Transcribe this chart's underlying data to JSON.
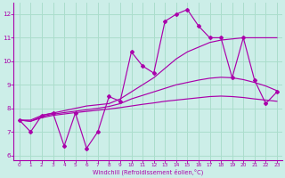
{
  "xlabel": "Windchill (Refroidissement éolien,°C)",
  "background_color": "#cceee8",
  "grid_color": "#aaddcc",
  "line_color": "#aa00aa",
  "x": [
    0,
    1,
    2,
    3,
    4,
    5,
    6,
    7,
    8,
    9,
    10,
    11,
    12,
    13,
    14,
    15,
    16,
    17,
    18,
    19,
    20,
    21,
    22,
    23
  ],
  "y_main": [
    7.5,
    7.0,
    7.7,
    7.8,
    6.4,
    7.8,
    6.3,
    7.0,
    8.5,
    8.3,
    10.4,
    9.8,
    9.5,
    11.7,
    12.0,
    12.2,
    11.5,
    11.0,
    11.0,
    9.3,
    11.0,
    9.2,
    8.2,
    8.7
  ],
  "y_smooth_high": [
    7.5,
    7.5,
    7.7,
    7.8,
    7.9,
    8.0,
    8.1,
    8.15,
    8.2,
    8.4,
    8.7,
    9.0,
    9.3,
    9.7,
    10.1,
    10.4,
    10.6,
    10.8,
    10.9,
    10.95,
    11.0,
    11.0,
    11.0,
    11.0
  ],
  "y_smooth_mid": [
    7.5,
    7.45,
    7.65,
    7.75,
    7.82,
    7.88,
    7.94,
    8.0,
    8.08,
    8.2,
    8.4,
    8.55,
    8.7,
    8.85,
    9.0,
    9.1,
    9.2,
    9.28,
    9.32,
    9.3,
    9.22,
    9.1,
    8.95,
    8.75
  ],
  "y_smooth_low": [
    7.5,
    7.45,
    7.6,
    7.7,
    7.76,
    7.82,
    7.87,
    7.92,
    7.97,
    8.03,
    8.1,
    8.17,
    8.23,
    8.3,
    8.35,
    8.4,
    8.45,
    8.5,
    8.52,
    8.5,
    8.46,
    8.4,
    8.35,
    8.3
  ],
  "ylim": [
    5.8,
    12.5
  ],
  "xlim": [
    -0.5,
    23.5
  ],
  "yticks": [
    6,
    7,
    8,
    9,
    10,
    11,
    12
  ],
  "xticks": [
    0,
    1,
    2,
    3,
    4,
    5,
    6,
    7,
    8,
    9,
    10,
    11,
    12,
    13,
    14,
    15,
    16,
    17,
    18,
    19,
    20,
    21,
    22,
    23
  ]
}
